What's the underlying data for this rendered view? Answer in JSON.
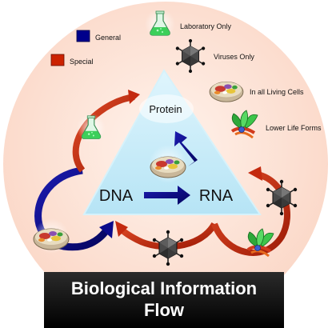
{
  "legend": {
    "general": {
      "label": "General",
      "color": "#00008b"
    },
    "special": {
      "label": "Special",
      "color": "#cc2200"
    },
    "laboratory_only": "Laboratory Only",
    "viruses_only": "Viruses Only",
    "in_all_living_cells": "In all Living Cells",
    "lower_life_forms": "Lower Life Forms"
  },
  "nodes": {
    "protein": "Protein",
    "dna": "DNA",
    "rna": "RNA"
  },
  "title": {
    "line1": "Biological Information",
    "line2": "Flow"
  },
  "colors": {
    "background_circle": "#fde4d8",
    "triangle": "#c9ecf8",
    "general_arrow": "#0a0a8a",
    "special_arrow": "#c42a0f"
  }
}
